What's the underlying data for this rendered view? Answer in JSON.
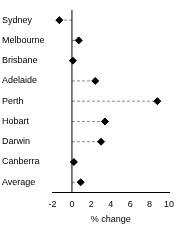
{
  "chart_data": {
    "type": "dot",
    "orientation": "horizontal",
    "categories": [
      "Sydney",
      "Melbourne",
      "Brisbane",
      "Adelaide",
      "Perth",
      "Hobart",
      "Darwin",
      "Canberra",
      "Average"
    ],
    "values": [
      -1.3,
      0.7,
      0.1,
      2.4,
      8.8,
      3.4,
      3.0,
      0.2,
      0.9
    ],
    "color": "#000000",
    "marker": "diamond",
    "line_style": "dashed",
    "xlabel": "% change",
    "xlim": [
      -2,
      10
    ],
    "xticks": [
      -2,
      0,
      2,
      4,
      6,
      8,
      10
    ],
    "grid": false
  }
}
